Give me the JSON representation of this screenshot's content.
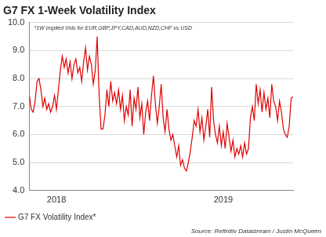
{
  "chart_data": {
    "type": "line",
    "title": "G7 FX 1-Week Volatility Index",
    "subtitle": "*1W Implied Vols for EUR,GBP,JPY,CAD,AUD,NZD,CHF vs USD",
    "source": "Source: Refinitiv Datastream / Justin McQueen",
    "categories": [
      null,
      null,
      null,
      null,
      null,
      null,
      null,
      null,
      null,
      null,
      null,
      null,
      null,
      null,
      "2018",
      null,
      null,
      null,
      null,
      null,
      null,
      null,
      null,
      null,
      null,
      null,
      null,
      null,
      null,
      null,
      null,
      null,
      null,
      null,
      null,
      null,
      null,
      null,
      null,
      null,
      null,
      null,
      null,
      null,
      null,
      null,
      null,
      null,
      null,
      null,
      null,
      null,
      null,
      null,
      null,
      null,
      null,
      null,
      null,
      null,
      null,
      null,
      null,
      null,
      null,
      null,
      null,
      null,
      null,
      null,
      null,
      null,
      null,
      null,
      null,
      null,
      null,
      null,
      null,
      null,
      null,
      null,
      null,
      null,
      null,
      null,
      null,
      null,
      null,
      null,
      null,
      null,
      null,
      null,
      null,
      null,
      null,
      null,
      null,
      null,
      "2019",
      null,
      null,
      null,
      null,
      null,
      null,
      null,
      null,
      null,
      null,
      null,
      null,
      null,
      null,
      null,
      null,
      null,
      null,
      null,
      null,
      null,
      null,
      null,
      null,
      null,
      null,
      null,
      null,
      null,
      null,
      null,
      null,
      null,
      null,
      null,
      null
    ],
    "series": [
      {
        "name": "G7 FX Volatility Index*",
        "color": "#e00000",
        "values": [
          7.4,
          6.9,
          6.8,
          7.2,
          7.9,
          8.0,
          7.6,
          7.0,
          7.3,
          6.9,
          7.1,
          6.8,
          7.0,
          7.4,
          6.9,
          7.6,
          8.3,
          8.8,
          8.4,
          8.7,
          8.2,
          8.6,
          8.0,
          8.5,
          8.7,
          8.2,
          8.4,
          7.9,
          8.6,
          9.1,
          8.3,
          8.8,
          8.5,
          7.8,
          8.3,
          9.5,
          7.4,
          6.2,
          6.2,
          6.7,
          7.6,
          7.0,
          7.9,
          7.2,
          7.5,
          7.1,
          7.6,
          6.9,
          7.4,
          6.5,
          7.0,
          6.7,
          7.6,
          6.3,
          7.3,
          6.9,
          7.7,
          6.6,
          7.1,
          6.0,
          6.8,
          7.2,
          6.5,
          7.4,
          8.1,
          7.1,
          6.4,
          7.0,
          7.8,
          6.6,
          6.1,
          6.9,
          6.2,
          5.8,
          6.0,
          5.6,
          5.2,
          5.6,
          4.9,
          5.1,
          4.8,
          4.7,
          5.0,
          5.4,
          5.9,
          6.5,
          6.3,
          6.9,
          6.1,
          6.6,
          5.8,
          6.3,
          6.9,
          5.9,
          7.7,
          6.5,
          6.0,
          5.7,
          6.3,
          5.6,
          6.1,
          5.5,
          6.4,
          5.9,
          5.4,
          5.8,
          5.2,
          5.5,
          5.3,
          5.6,
          5.2,
          5.7,
          5.3,
          5.5,
          6.6,
          7.0,
          6.5,
          7.8,
          7.1,
          7.6,
          6.8,
          7.5,
          6.9,
          7.3,
          6.6,
          7.8,
          7.2,
          7.0,
          6.5,
          7.2,
          6.8,
          6.2,
          6.0,
          5.9,
          6.3,
          7.3,
          7.35
        ]
      }
    ],
    "ylim": [
      4,
      10
    ],
    "yticks": [
      {
        "value": 4,
        "label": "4.0"
      },
      {
        "value": 5,
        "label": "5.0"
      },
      {
        "value": 6,
        "label": "6.0"
      },
      {
        "value": 7,
        "label": "7.0"
      },
      {
        "value": 8,
        "label": "8.0"
      },
      {
        "value": 9,
        "label": "9.0"
      },
      {
        "value": 10,
        "label": "10.0"
      }
    ],
    "grid": true,
    "legend": "bottom-left"
  }
}
